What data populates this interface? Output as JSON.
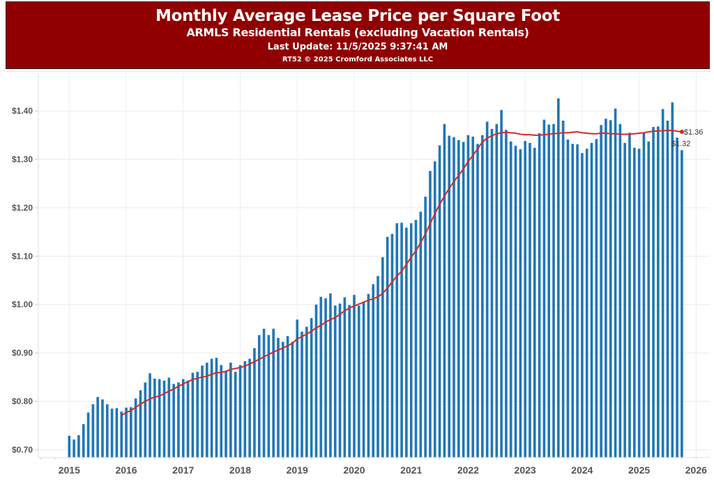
{
  "header": {
    "title": "Monthly Average Lease Price per Square Foot",
    "subtitle": "ARMLS Residential Rentals (excluding Vacation Rentals)",
    "last_update": "Last Update: 11/5/2025 9:37:41 AM",
    "copyright": "RT52 © 2025 Cromford Associates LLC"
  },
  "colors": {
    "header_bg": "#900000",
    "bar": "#1f77b4",
    "trend": "#d62728",
    "grid": "#ececec"
  },
  "chart_data": {
    "type": "bar",
    "title": "Monthly Average Lease Price per Square Foot",
    "xlabel": "",
    "ylabel": "",
    "start": "2015-01",
    "frequency": "monthly",
    "ylim": [
      0.684,
      1.478
    ],
    "xlim": [
      2014.5,
      2026.25
    ],
    "grid": true,
    "y_ticks": [
      0.7,
      0.8,
      0.9,
      1.0,
      1.1,
      1.2,
      1.3,
      1.4
    ],
    "y_tick_labels": [
      "$0.70",
      "$0.80",
      "$0.90",
      "$1.00",
      "$1.10",
      "$1.20",
      "$1.30",
      "$1.40"
    ],
    "x_ticks": [
      2015,
      2016,
      2017,
      2018,
      2019,
      2020,
      2021,
      2022,
      2023,
      2024,
      2025,
      2026
    ],
    "x_tick_labels": [
      "2015",
      "2016",
      "2017",
      "2018",
      "2019",
      "2020",
      "2021",
      "2022",
      "2023",
      "2024",
      "2025",
      "2026"
    ],
    "series": [
      {
        "name": "Monthly Average Lease Price per Sq Ft",
        "type": "bar",
        "values": [
          0.729,
          0.721,
          0.73,
          0.753,
          0.777,
          0.794,
          0.809,
          0.804,
          0.794,
          0.785,
          0.786,
          0.779,
          0.787,
          0.788,
          0.806,
          0.823,
          0.839,
          0.858,
          0.847,
          0.846,
          0.843,
          0.849,
          0.836,
          0.839,
          0.846,
          0.843,
          0.859,
          0.861,
          0.874,
          0.88,
          0.888,
          0.89,
          0.875,
          0.862,
          0.88,
          0.861,
          0.875,
          0.883,
          0.888,
          0.91,
          0.937,
          0.95,
          0.937,
          0.95,
          0.931,
          0.923,
          0.935,
          0.923,
          0.969,
          0.944,
          0.954,
          0.972,
          1.0,
          1.016,
          1.013,
          1.023,
          0.998,
          1.002,
          1.015,
          0.999,
          1.02,
          0.998,
          1.006,
          1.022,
          1.042,
          1.059,
          1.098,
          1.14,
          1.146,
          1.168,
          1.169,
          1.159,
          1.168,
          1.175,
          1.192,
          1.223,
          1.276,
          1.296,
          1.329,
          1.373,
          1.349,
          1.346,
          1.34,
          1.336,
          1.35,
          1.347,
          1.332,
          1.35,
          1.378,
          1.363,
          1.373,
          1.402,
          1.361,
          1.337,
          1.328,
          1.321,
          1.338,
          1.334,
          1.324,
          1.354,
          1.382,
          1.372,
          1.373,
          1.426,
          1.38,
          1.341,
          1.332,
          1.331,
          1.313,
          1.322,
          1.334,
          1.342,
          1.371,
          1.384,
          1.381,
          1.405,
          1.373,
          1.334,
          1.355,
          1.324,
          1.322,
          1.355,
          1.337,
          1.367,
          1.368,
          1.404,
          1.38,
          1.418,
          1.345,
          1.319
        ],
        "last_label": "$1.32"
      },
      {
        "name": "12-Month Moving Average",
        "type": "line",
        "start": "2015-12",
        "values": [
          0.771,
          0.777,
          0.781,
          0.788,
          0.794,
          0.8,
          0.805,
          0.809,
          0.811,
          0.816,
          0.821,
          0.826,
          0.831,
          0.836,
          0.841,
          0.845,
          0.848,
          0.85,
          0.852,
          0.856,
          0.859,
          0.86,
          0.862,
          0.866,
          0.868,
          0.87,
          0.873,
          0.877,
          0.882,
          0.887,
          0.892,
          0.897,
          0.902,
          0.906,
          0.91,
          0.915,
          0.92,
          0.929,
          0.934,
          0.939,
          0.945,
          0.952,
          0.957,
          0.964,
          0.969,
          0.973,
          0.98,
          0.987,
          0.993,
          0.997,
          1.001,
          1.005,
          1.009,
          1.012,
          1.016,
          1.023,
          1.034,
          1.047,
          1.059,
          1.069,
          1.083,
          1.098,
          1.111,
          1.128,
          1.146,
          1.167,
          1.188,
          1.207,
          1.224,
          1.24,
          1.254,
          1.267,
          1.28,
          1.296,
          1.308,
          1.322,
          1.336,
          1.344,
          1.349,
          1.353,
          1.355,
          1.356,
          1.355,
          1.354,
          1.352,
          1.351,
          1.351,
          1.35,
          1.35,
          1.351,
          1.352,
          1.353,
          1.354,
          1.355,
          1.355,
          1.356,
          1.357,
          1.355,
          1.354,
          1.353,
          1.353,
          1.354,
          1.354,
          1.353,
          1.353,
          1.352,
          1.352,
          1.352,
          1.353,
          1.354,
          1.355,
          1.357,
          1.358,
          1.359,
          1.359,
          1.36,
          1.36,
          1.358,
          1.357
        ],
        "last_label": "$1.36"
      }
    ]
  }
}
